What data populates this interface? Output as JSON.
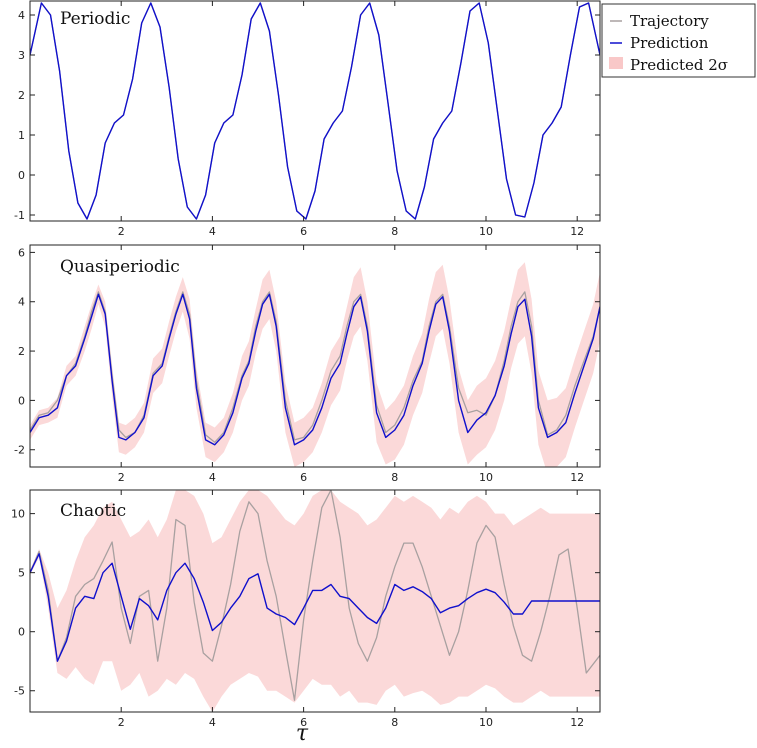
{
  "legend": {
    "items": [
      {
        "label": "Trajectory",
        "kind": "line",
        "color": "#a8a0a0"
      },
      {
        "label": "Prediction",
        "kind": "line",
        "color": "#1010cc"
      },
      {
        "label": "Predicted 2σ",
        "kind": "patch",
        "color": "#f9c8c8"
      }
    ]
  },
  "chart_data": [
    {
      "type": "line",
      "title": "Periodic",
      "xlabel": "",
      "ylabel": "",
      "xlim": [
        0,
        12.5
      ],
      "ylim": [
        -1.15,
        4.35
      ],
      "xticks": [
        2,
        4,
        6,
        8,
        10,
        12
      ],
      "yticks": [
        -1,
        0,
        1,
        2,
        3,
        4
      ],
      "x": [
        0,
        0.25,
        0.45,
        0.65,
        0.85,
        1.05,
        1.25,
        1.45,
        1.65,
        1.85,
        2.05,
        2.25,
        2.45,
        2.65,
        2.85,
        3.05,
        3.25,
        3.45,
        3.65,
        3.85,
        4.05,
        4.25,
        4.45,
        4.65,
        4.85,
        5.05,
        5.25,
        5.45,
        5.65,
        5.85,
        6.05,
        6.25,
        6.45,
        6.65,
        6.85,
        7.05,
        7.25,
        7.45,
        7.65,
        7.85,
        8.05,
        8.25,
        8.45,
        8.65,
        8.85,
        9.05,
        9.25,
        9.45,
        9.65,
        9.85,
        10.05,
        10.25,
        10.45,
        10.65,
        10.85,
        11.05,
        11.25,
        11.45,
        11.65,
        11.85,
        12.05,
        12.25,
        12.5
      ],
      "series": [
        {
          "name": "Trajectory",
          "color": "#a8a0a0",
          "values": [
            3.0,
            4.3,
            4.0,
            2.6,
            0.6,
            -0.7,
            -1.1,
            -0.5,
            0.8,
            1.3,
            1.5,
            2.4,
            3.8,
            4.3,
            3.7,
            2.2,
            0.4,
            -0.8,
            -1.1,
            -0.5,
            0.8,
            1.3,
            1.5,
            2.5,
            3.9,
            4.3,
            3.6,
            2.0,
            0.2,
            -0.9,
            -1.1,
            -0.4,
            0.9,
            1.3,
            1.6,
            2.7,
            4.0,
            4.3,
            3.5,
            1.8,
            0.1,
            -0.9,
            -1.1,
            -0.3,
            0.9,
            1.3,
            1.6,
            2.8,
            4.1,
            4.3,
            3.3,
            1.6,
            -0.1,
            -1.0,
            -1.05,
            -0.2,
            1.0,
            1.3,
            1.7,
            3.0,
            4.2,
            4.3,
            3.0
          ]
        },
        {
          "name": "Prediction",
          "color": "#1010cc",
          "values": [
            3.0,
            4.3,
            4.0,
            2.6,
            0.6,
            -0.7,
            -1.1,
            -0.5,
            0.8,
            1.3,
            1.5,
            2.4,
            3.8,
            4.3,
            3.7,
            2.2,
            0.4,
            -0.8,
            -1.1,
            -0.5,
            0.8,
            1.3,
            1.5,
            2.5,
            3.9,
            4.3,
            3.6,
            2.0,
            0.2,
            -0.9,
            -1.1,
            -0.4,
            0.9,
            1.3,
            1.6,
            2.7,
            4.0,
            4.3,
            3.5,
            1.8,
            0.1,
            -0.9,
            -1.1,
            -0.3,
            0.9,
            1.3,
            1.6,
            2.8,
            4.1,
            4.3,
            3.3,
            1.6,
            -0.1,
            -1.0,
            -1.05,
            -0.2,
            1.0,
            1.3,
            1.7,
            3.0,
            4.2,
            4.3,
            3.0
          ]
        }
      ],
      "band": {
        "name": "Predicted 2σ",
        "color": "#fbd9d9",
        "lower": [
          2.98,
          4.28,
          3.98,
          2.58,
          0.58,
          -0.72,
          -1.12,
          -0.52,
          0.78,
          1.28,
          1.48,
          2.38,
          3.78,
          4.28,
          3.68,
          2.18,
          0.38,
          -0.82,
          -1.12,
          -0.52,
          0.78,
          1.28,
          1.48,
          2.48,
          3.88,
          4.28,
          3.58,
          1.98,
          0.18,
          -0.92,
          -1.12,
          -0.42,
          0.88,
          1.28,
          1.58,
          2.68,
          3.98,
          4.28,
          3.48,
          1.78,
          0.08,
          -0.92,
          -1.12,
          -0.32,
          0.88,
          1.28,
          1.58,
          2.78,
          4.08,
          4.28,
          3.28,
          1.58,
          -0.12,
          -1.02,
          -1.07,
          -0.22,
          0.98,
          1.28,
          1.68,
          2.98,
          4.18,
          4.28,
          2.98
        ],
        "upper": [
          3.02,
          4.32,
          4.02,
          2.62,
          0.62,
          -0.68,
          -1.08,
          -0.48,
          0.82,
          1.32,
          1.52,
          2.42,
          3.82,
          4.32,
          3.72,
          2.22,
          0.42,
          -0.78,
          -1.08,
          -0.48,
          0.82,
          1.32,
          1.52,
          2.52,
          3.92,
          4.32,
          3.62,
          2.02,
          0.22,
          -0.88,
          -1.08,
          -0.38,
          0.92,
          1.32,
          1.62,
          2.72,
          4.02,
          4.32,
          3.52,
          1.82,
          0.12,
          -0.88,
          -1.08,
          -0.28,
          0.92,
          1.32,
          1.62,
          2.82,
          4.12,
          4.32,
          3.32,
          1.62,
          -0.08,
          -0.98,
          -1.03,
          -0.18,
          1.02,
          1.32,
          1.72,
          3.02,
          4.22,
          4.32,
          3.02
        ]
      }
    },
    {
      "type": "line",
      "title": "Quasiperiodic",
      "xlabel": "",
      "ylabel": "",
      "xlim": [
        0,
        12.5
      ],
      "ylim": [
        -2.7,
        6.3
      ],
      "xticks": [
        2,
        4,
        6,
        8,
        10,
        12
      ],
      "yticks": [
        -2,
        0,
        2,
        4,
        6
      ],
      "x": [
        0,
        0.2,
        0.4,
        0.6,
        0.8,
        1.0,
        1.2,
        1.35,
        1.5,
        1.65,
        1.8,
        1.95,
        2.1,
        2.3,
        2.5,
        2.7,
        2.9,
        3.05,
        3.2,
        3.35,
        3.5,
        3.65,
        3.85,
        4.05,
        4.25,
        4.45,
        4.65,
        4.8,
        4.95,
        5.1,
        5.25,
        5.4,
        5.6,
        5.8,
        6.0,
        6.2,
        6.4,
        6.6,
        6.8,
        6.95,
        7.1,
        7.25,
        7.4,
        7.6,
        7.8,
        8.0,
        8.2,
        8.4,
        8.6,
        8.75,
        8.9,
        9.05,
        9.2,
        9.4,
        9.6,
        9.8,
        10.0,
        10.2,
        10.4,
        10.55,
        10.7,
        10.85,
        11.0,
        11.15,
        11.35,
        11.55,
        11.75,
        11.95,
        12.15,
        12.35,
        12.5
      ],
      "series": [
        {
          "name": "Trajectory",
          "color": "#a8a0a0",
          "values": [
            -1.2,
            -0.6,
            -0.5,
            0.0,
            1.0,
            1.5,
            2.6,
            3.6,
            4.4,
            3.6,
            1.0,
            -1.2,
            -1.5,
            -1.3,
            -0.6,
            1.1,
            1.5,
            2.6,
            3.6,
            4.4,
            3.5,
            0.8,
            -1.4,
            -1.7,
            -1.3,
            -0.3,
            1.0,
            1.6,
            3.0,
            4.0,
            4.4,
            3.2,
            0.0,
            -1.6,
            -1.5,
            -1.0,
            0.0,
            1.2,
            1.8,
            3.0,
            4.0,
            4.3,
            3.0,
            -0.2,
            -1.3,
            -1.0,
            -0.3,
            0.8,
            1.6,
            3.0,
            4.0,
            4.3,
            3.0,
            0.5,
            -0.5,
            -0.4,
            -0.6,
            0.2,
            1.6,
            3.0,
            4.0,
            4.4,
            3.0,
            0.0,
            -1.4,
            -1.2,
            -0.6,
            0.6,
            1.6,
            2.6,
            3.8
          ]
        },
        {
          "name": "Prediction",
          "color": "#1010cc",
          "values": [
            -1.3,
            -0.7,
            -0.6,
            -0.3,
            1.0,
            1.4,
            2.5,
            3.4,
            4.3,
            3.5,
            0.8,
            -1.5,
            -1.6,
            -1.3,
            -0.7,
            1.0,
            1.4,
            2.5,
            3.5,
            4.3,
            3.3,
            0.5,
            -1.6,
            -1.8,
            -1.4,
            -0.5,
            0.9,
            1.5,
            2.8,
            3.9,
            4.3,
            3.0,
            -0.3,
            -1.8,
            -1.6,
            -1.2,
            -0.3,
            0.9,
            1.5,
            2.7,
            3.8,
            4.2,
            2.8,
            -0.5,
            -1.5,
            -1.2,
            -0.6,
            0.6,
            1.5,
            2.8,
            3.9,
            4.2,
            2.8,
            0.0,
            -1.3,
            -0.8,
            -0.5,
            0.2,
            1.4,
            2.7,
            3.8,
            4.1,
            2.6,
            -0.3,
            -1.5,
            -1.3,
            -0.9,
            0.3,
            1.4,
            2.5,
            3.8
          ]
        }
      ],
      "band": {
        "name": "Predicted 2σ",
        "color": "#fbd9d9",
        "lower": [
          -1.6,
          -1.0,
          -0.9,
          -0.7,
          0.6,
          1.0,
          2.0,
          2.9,
          3.9,
          3.0,
          0.2,
          -2.1,
          -2.2,
          -1.9,
          -1.3,
          0.3,
          0.7,
          1.8,
          2.8,
          3.6,
          2.5,
          -0.3,
          -2.3,
          -2.5,
          -2.1,
          -1.3,
          0.0,
          0.6,
          1.9,
          2.9,
          3.3,
          2.0,
          -1.3,
          -2.7,
          -2.5,
          -2.1,
          -1.3,
          -0.2,
          0.4,
          1.6,
          2.6,
          3.0,
          1.6,
          -1.7,
          -2.6,
          -2.4,
          -1.8,
          -0.6,
          0.3,
          1.5,
          2.6,
          2.9,
          1.5,
          -1.3,
          -2.6,
          -2.2,
          -1.9,
          -1.2,
          0.0,
          1.3,
          2.3,
          2.6,
          1.1,
          -1.8,
          -3.0,
          -2.7,
          -2.3,
          -1.1,
          0.0,
          1.1,
          2.4
        ],
        "upper": [
          -1.0,
          -0.4,
          -0.3,
          0.1,
          1.4,
          1.8,
          3.0,
          3.9,
          4.7,
          4.0,
          1.4,
          -0.9,
          -1.0,
          -0.7,
          -0.1,
          1.7,
          2.1,
          3.2,
          4.2,
          5.0,
          4.1,
          1.3,
          -0.9,
          -1.1,
          -0.7,
          0.3,
          1.8,
          2.4,
          3.7,
          4.9,
          5.3,
          4.0,
          0.7,
          -0.9,
          -0.7,
          -0.3,
          0.7,
          2.0,
          2.6,
          3.8,
          5.0,
          5.4,
          4.0,
          0.7,
          -0.4,
          0.0,
          0.6,
          1.8,
          2.7,
          4.1,
          5.2,
          5.5,
          4.1,
          1.3,
          0.0,
          0.6,
          0.9,
          1.6,
          2.8,
          4.1,
          5.3,
          5.6,
          4.1,
          1.2,
          0.0,
          0.1,
          0.5,
          1.7,
          2.8,
          3.9,
          5.2
        ]
      }
    },
    {
      "type": "line",
      "title": "Chaotic",
      "xlabel": "τ",
      "ylabel": "",
      "xlim": [
        0,
        12.5
      ],
      "ylim": [
        -6.8,
        12.0
      ],
      "xticks": [
        2,
        4,
        6,
        8,
        10,
        12
      ],
      "yticks": [
        -5,
        0,
        5,
        10
      ],
      "x": [
        0,
        0.2,
        0.4,
        0.6,
        0.8,
        1.0,
        1.2,
        1.4,
        1.6,
        1.8,
        2.0,
        2.2,
        2.4,
        2.6,
        2.8,
        3.0,
        3.2,
        3.4,
        3.6,
        3.8,
        4.0,
        4.2,
        4.4,
        4.6,
        4.8,
        5.0,
        5.2,
        5.4,
        5.6,
        5.8,
        6.0,
        6.2,
        6.4,
        6.6,
        6.8,
        7.0,
        7.2,
        7.4,
        7.6,
        7.8,
        8.0,
        8.2,
        8.4,
        8.6,
        8.8,
        9.0,
        9.2,
        9.4,
        9.6,
        9.8,
        10.0,
        10.2,
        10.4,
        10.6,
        10.8,
        11.0,
        11.2,
        11.4,
        11.6,
        11.8,
        12.0,
        12.2,
        12.5
      ],
      "series": [
        {
          "name": "Trajectory",
          "color": "#a8a0a0",
          "values": [
            5.0,
            6.8,
            3.5,
            -2.5,
            -0.5,
            3.0,
            4.0,
            4.5,
            6.0,
            7.6,
            2.0,
            -1.0,
            3.0,
            3.5,
            -2.5,
            2.0,
            9.5,
            9.0,
            2.5,
            -1.8,
            -2.5,
            0.5,
            4.0,
            8.5,
            11.0,
            10.0,
            6.0,
            3.0,
            -1.5,
            -5.8,
            1.0,
            6.0,
            10.5,
            12.0,
            8.0,
            2.0,
            -1.0,
            -2.5,
            -0.5,
            3.0,
            5.5,
            7.5,
            7.5,
            5.5,
            3.0,
            0.5,
            -2.0,
            0.0,
            3.5,
            7.5,
            9.0,
            8.0,
            4.0,
            0.5,
            -2.0,
            -2.5,
            0.0,
            3.0,
            6.5,
            7.0,
            2.0,
            -3.5,
            -2.0
          ]
        },
        {
          "name": "Prediction",
          "color": "#1010cc",
          "values": [
            5.0,
            6.6,
            3.0,
            -2.5,
            -0.8,
            2.0,
            3.0,
            2.8,
            5.0,
            5.8,
            3.0,
            0.2,
            2.8,
            2.2,
            1.0,
            3.5,
            5.0,
            5.8,
            4.5,
            2.5,
            0.1,
            0.8,
            2.0,
            3.0,
            4.5,
            4.9,
            2.0,
            1.5,
            1.2,
            0.6,
            2.0,
            3.5,
            3.5,
            4.0,
            3.0,
            2.8,
            2.0,
            1.2,
            0.7,
            2.0,
            4.0,
            3.5,
            3.8,
            3.4,
            2.8,
            1.6,
            2.0,
            2.2,
            2.8,
            3.3,
            3.6,
            3.3,
            2.5,
            1.5,
            1.5,
            2.6,
            2.6,
            2.6,
            2.6,
            2.6,
            2.6,
            2.6,
            2.6
          ]
        }
      ],
      "band": {
        "name": "Predicted 2σ",
        "color": "#fbd9d9",
        "lower": [
          4.8,
          6.3,
          2.0,
          -3.5,
          -4.0,
          -3.0,
          -4.0,
          -4.5,
          -2.5,
          -2.5,
          -5.0,
          -4.5,
          -3.5,
          -5.5,
          -5.0,
          -4.0,
          -4.5,
          -3.5,
          -4.0,
          -5.5,
          -6.8,
          -5.5,
          -4.5,
          -4.0,
          -3.5,
          -3.8,
          -5.0,
          -5.0,
          -5.5,
          -6.0,
          -5.0,
          -4.0,
          -4.5,
          -4.5,
          -5.5,
          -5.0,
          -6.0,
          -6.0,
          -6.2,
          -5.0,
          -4.5,
          -5.5,
          -5.2,
          -5.0,
          -5.5,
          -6.2,
          -6.0,
          -5.5,
          -5.5,
          -5.0,
          -4.5,
          -4.8,
          -5.5,
          -6.0,
          -6.0,
          -5.5,
          -5.0,
          -5.5,
          -5.5,
          -5.5,
          -5.5,
          -5.5,
          -5.5
        ],
        "upper": [
          5.2,
          7.0,
          5.0,
          2.0,
          3.5,
          6.0,
          8.0,
          9.0,
          10.5,
          11.0,
          9.5,
          8.0,
          8.5,
          9.5,
          8.0,
          9.5,
          12.0,
          12.0,
          11.5,
          10.0,
          7.5,
          8.0,
          9.5,
          11.0,
          12.0,
          12.0,
          11.5,
          10.5,
          9.5,
          9.0,
          10.0,
          11.5,
          12.0,
          12.0,
          11.0,
          10.5,
          10.0,
          9.0,
          9.5,
          10.5,
          11.5,
          11.0,
          11.5,
          11.0,
          10.5,
          9.5,
          10.5,
          10.0,
          11.0,
          11.5,
          11.0,
          10.0,
          10.0,
          9.0,
          9.5,
          10.0,
          10.5,
          10.0,
          10.0,
          10.0,
          10.0,
          10.0,
          10.0
        ]
      }
    }
  ]
}
